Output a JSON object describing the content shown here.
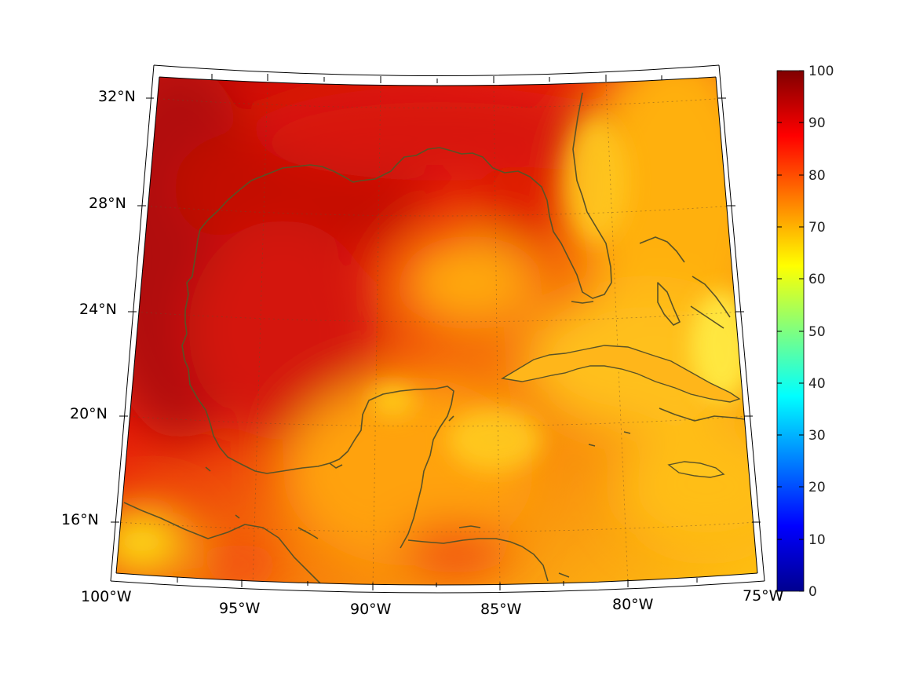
{
  "map": {
    "projection": "lambert-conformal",
    "longitude_labels": [
      "100°W",
      "95°W",
      "90°W",
      "85°W",
      "80°W",
      "75°W"
    ],
    "latitude_labels": [
      "32°N",
      "28°N",
      "24°N",
      "20°N",
      "16°N"
    ],
    "coastline_color": "#5a5226",
    "gridlines": true
  },
  "colorbar": {
    "colormap": "jet",
    "min": 0,
    "max": 100,
    "tick_labels": [
      "0",
      "10",
      "20",
      "30",
      "40",
      "50",
      "60",
      "70",
      "80",
      "90",
      "100"
    ]
  }
}
